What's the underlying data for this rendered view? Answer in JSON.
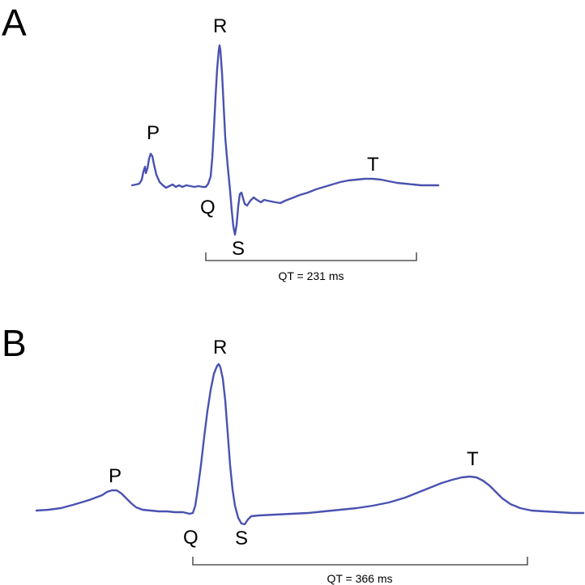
{
  "panels": [
    {
      "letter": "A",
      "waves": {
        "p": "P",
        "q": "Q",
        "r": "R",
        "s": "S",
        "t": "T"
      },
      "qt_label": "QT = 231 ms"
    },
    {
      "letter": "B",
      "waves": {
        "p": "P",
        "q": "Q",
        "r": "R",
        "s": "S",
        "t": "T"
      },
      "qt_label": "QT = 366 ms"
    }
  ],
  "colors": {
    "trace": "#4a52b0",
    "bracket": "#333333",
    "text": "#000000"
  }
}
